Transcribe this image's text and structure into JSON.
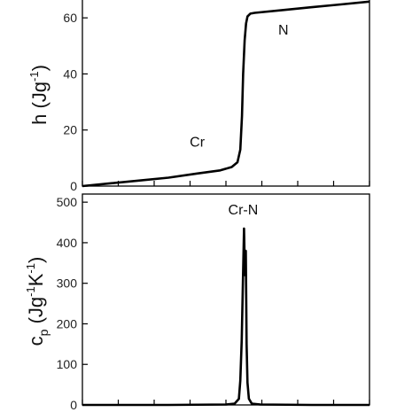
{
  "chart_data": [
    {
      "type": "line",
      "ylabel_main": "h (Jg",
      "ylabel_sup": "-1",
      "ylabel_close": ")",
      "xlabel": "",
      "xlim": [
        0,
        100
      ],
      "ylim": [
        0,
        67
      ],
      "yticks": [
        0,
        20,
        40,
        60
      ],
      "xticks": [
        0,
        12.5,
        25,
        37.5,
        50,
        62.5,
        75,
        87.5,
        100
      ],
      "grid": false,
      "annotations": [
        {
          "text": "Cr",
          "x": 40,
          "y": 14
        },
        {
          "text": "N",
          "x": 70,
          "y": 54
        }
      ],
      "series": [
        {
          "x": [
            0,
            10,
            20,
            30,
            40,
            48,
            52,
            54,
            55,
            55.6,
            56,
            56.5,
            57,
            57.5,
            58.5,
            60,
            70,
            80,
            90,
            100
          ],
          "y": [
            0,
            1.0,
            2.0,
            3.0,
            4.5,
            5.6,
            6.8,
            8.5,
            13,
            25,
            40,
            52,
            58,
            60.5,
            61.5,
            61.8,
            62.8,
            63.8,
            64.8,
            65.8
          ]
        }
      ]
    },
    {
      "type": "line",
      "ylabel_main": "c",
      "ylabel_sub": "p",
      "ylabel_mid": " (Jg",
      "ylabel_sup1": "-1",
      "ylabel_k": "K",
      "ylabel_sup2": "-1",
      "ylabel_close": ")",
      "xlabel": "",
      "xlim": [
        0,
        100
      ],
      "ylim": [
        0,
        520
      ],
      "yticks": [
        0,
        100,
        200,
        300,
        400,
        500
      ],
      "xticks": [
        0,
        12.5,
        25,
        37.5,
        50,
        62.5,
        75,
        87.5,
        100
      ],
      "grid": false,
      "annotations": [
        {
          "text": "Cr-N",
          "x": 56,
          "y": 470
        }
      ],
      "series": [
        {
          "x": [
            0,
            30,
            50,
            53,
            54.5,
            55,
            55.5,
            56,
            56.3,
            56.6,
            56.9,
            57.2,
            57.5,
            58,
            59,
            62,
            80,
            100
          ],
          "y": [
            0,
            0,
            1,
            3,
            15,
            60,
            160,
            330,
            435,
            320,
            380,
            150,
            55,
            15,
            3,
            1,
            0,
            0
          ]
        }
      ]
    }
  ]
}
